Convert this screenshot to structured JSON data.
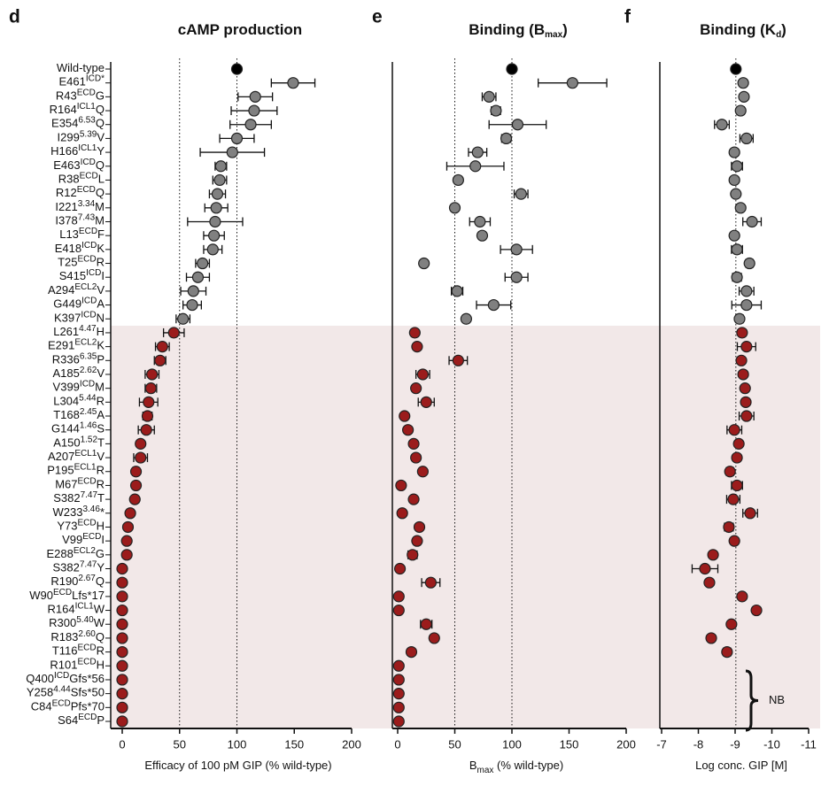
{
  "chart_data": [
    {
      "type": "dot",
      "letter": "d",
      "title": [
        "cAMP production"
      ],
      "xlabel": [
        "Efficacy of 100 pM GIP (% wild-type)"
      ],
      "categories": [
        [
          "Wild-type"
        ],
        [
          "E461",
          "ICD*"
        ],
        [
          "R43",
          "ECD",
          "G"
        ],
        [
          "R164",
          "ICL1",
          "Q"
        ],
        [
          "E354",
          "6.53",
          "Q"
        ],
        [
          "I299",
          "5.39",
          "V"
        ],
        [
          "H166",
          "ICL1",
          "Y"
        ],
        [
          "E463",
          "ICD",
          "Q"
        ],
        [
          "R38",
          "ECD",
          "L"
        ],
        [
          "R12",
          "ECD",
          "Q"
        ],
        [
          "I221",
          "3.34",
          "M"
        ],
        [
          "I378",
          "7.43",
          "M"
        ],
        [
          "L13",
          "ECD",
          "F"
        ],
        [
          "E418",
          "ICD",
          "K"
        ],
        [
          "T25",
          "ECD",
          "R"
        ],
        [
          "S415",
          "ICD",
          "I"
        ],
        [
          "A294",
          "ECL2",
          "V"
        ],
        [
          "G449",
          "ICD",
          "A"
        ],
        [
          "K397",
          "ICD",
          "N"
        ],
        [
          "L261",
          "4.47",
          "H"
        ],
        [
          "E291",
          "ECL2",
          "K"
        ],
        [
          "R336",
          "6.35",
          "P"
        ],
        [
          "A185",
          "2.62",
          "V"
        ],
        [
          "V399",
          "ICD",
          "M"
        ],
        [
          "L304",
          "5.44",
          "R"
        ],
        [
          "T168",
          "2.45",
          "A"
        ],
        [
          "G144",
          "1.46",
          "S"
        ],
        [
          "A150",
          "1.52",
          "T"
        ],
        [
          "A207",
          "ECL1",
          "V"
        ],
        [
          "P195",
          "ECL1",
          "R"
        ],
        [
          "M67",
          "ECD",
          "R"
        ],
        [
          "S382",
          "7.47",
          "T"
        ],
        [
          "W233",
          "3.46",
          "*"
        ],
        [
          "Y73",
          "ECD",
          "H"
        ],
        [
          "V99",
          "ECD",
          "I"
        ],
        [
          "E288",
          "ECL2",
          "G"
        ],
        [
          "S382",
          "7.47",
          "Y"
        ],
        [
          "R190",
          "2.67",
          "Q"
        ],
        [
          "W90",
          "ECD",
          "Lfs*17"
        ],
        [
          "R164",
          "ICL1",
          "W"
        ],
        [
          "R300",
          "5.40",
          "W"
        ],
        [
          "R183",
          "2.60",
          "Q"
        ],
        [
          "T116",
          "ECD",
          "R"
        ],
        [
          "R101",
          "ECD",
          "H"
        ],
        [
          "Q400",
          "ICD",
          "Gfs*56"
        ],
        [
          "Y258",
          "4.44",
          "Sfs*50"
        ],
        [
          "C84",
          "ECD",
          "Pfs*70"
        ],
        [
          "S64",
          "ECD",
          "P"
        ]
      ],
      "colors": [
        "#000000",
        "#808080",
        "#808080",
        "#808080",
        "#808080",
        "#808080",
        "#808080",
        "#808080",
        "#808080",
        "#808080",
        "#808080",
        "#808080",
        "#808080",
        "#808080",
        "#808080",
        "#808080",
        "#808080",
        "#808080",
        "#808080",
        "#9b1c1c",
        "#9b1c1c",
        "#9b1c1c",
        "#9b1c1c",
        "#9b1c1c",
        "#9b1c1c",
        "#9b1c1c",
        "#9b1c1c",
        "#9b1c1c",
        "#9b1c1c",
        "#9b1c1c",
        "#9b1c1c",
        "#9b1c1c",
        "#9b1c1c",
        "#9b1c1c",
        "#9b1c1c",
        "#9b1c1c",
        "#9b1c1c",
        "#9b1c1c",
        "#9b1c1c",
        "#9b1c1c",
        "#9b1c1c",
        "#9b1c1c",
        "#9b1c1c",
        "#9b1c1c",
        "#9b1c1c",
        "#9b1c1c",
        "#9b1c1c",
        "#9b1c1c"
      ],
      "shade_color": "#f2e8e8",
      "values": [
        100,
        149,
        116,
        115,
        112,
        100,
        96,
        86,
        85,
        83,
        82,
        81,
        80,
        79,
        70,
        66,
        62,
        61,
        53,
        45,
        35,
        33,
        26,
        25,
        23,
        22,
        21,
        16,
        16,
        12,
        12,
        11,
        7,
        5,
        4,
        4,
        0,
        0,
        0,
        0,
        0,
        0,
        0,
        0,
        0,
        0,
        0,
        0
      ],
      "errors": [
        null,
        19,
        15,
        20,
        18,
        15,
        28,
        5,
        6,
        7,
        10,
        24,
        9,
        8,
        6,
        10,
        11,
        8,
        6,
        9,
        6,
        5,
        6,
        5,
        8,
        4,
        7,
        2,
        6,
        3,
        2,
        1,
        3,
        2,
        1,
        null,
        null,
        null,
        null,
        null,
        null,
        null,
        null,
        null,
        null,
        null,
        null,
        null
      ],
      "xlim": [
        -10,
        200
      ],
      "xticks": [
        0,
        50,
        100,
        150,
        200
      ],
      "ref_lines": [
        50,
        100
      ]
    },
    {
      "type": "dot",
      "letter": "e",
      "title": [
        "Binding (B",
        "max",
        ")"
      ],
      "xlabel": [
        "B",
        "max",
        " (% wild-type)"
      ],
      "values": [
        100,
        153,
        80,
        86,
        105,
        95,
        70,
        68,
        53,
        108,
        50,
        72,
        74,
        104,
        23,
        104,
        52,
        84,
        60,
        15,
        17,
        53,
        22,
        16,
        25,
        6,
        9,
        14,
        16,
        22,
        3,
        14,
        4,
        19,
        17,
        13,
        2,
        29,
        1,
        1,
        25,
        32,
        12,
        1,
        1,
        1,
        1,
        1
      ],
      "errors": [
        null,
        30,
        6,
        4,
        25,
        4,
        8,
        25,
        3,
        6,
        null,
        9,
        3,
        14,
        2,
        10,
        5,
        15,
        3,
        null,
        null,
        8,
        6,
        null,
        7,
        null,
        2,
        null,
        null,
        null,
        null,
        null,
        null,
        2,
        3,
        4,
        null,
        8,
        null,
        null,
        5,
        null,
        null,
        null,
        null,
        null,
        null,
        null
      ],
      "xlim": [
        -5,
        200
      ],
      "xticks": [
        0,
        50,
        100,
        150,
        200
      ],
      "ref_lines": [
        50,
        100
      ]
    },
    {
      "type": "dot",
      "letter": "f",
      "title": [
        "Binding (K",
        "d",
        ")"
      ],
      "xlabel": [
        "Log conc. GIP [M]"
      ],
      "values": [
        -9.02,
        -9.22,
        -9.24,
        -9.15,
        -8.64,
        -9.31,
        -8.98,
        -9.05,
        -8.98,
        -9.02,
        -9.15,
        -9.46,
        -8.98,
        -9.05,
        -9.39,
        -9.05,
        -9.31,
        -9.31,
        -9.12,
        -9.19,
        -9.31,
        -9.17,
        -9.22,
        -9.27,
        -9.29,
        -9.31,
        -8.98,
        -9.1,
        -9.05,
        -8.86,
        -9.05,
        -8.95,
        -9.41,
        -8.83,
        -8.98,
        -8.4,
        -8.18,
        -8.3,
        -9.19,
        -9.58,
        -8.9,
        -8.35,
        -8.78,
        null,
        null,
        null,
        null,
        null
      ],
      "errors": [
        null,
        null,
        null,
        0.1,
        0.2,
        0.18,
        null,
        0.15,
        null,
        null,
        null,
        0.25,
        null,
        0.15,
        0.1,
        0.12,
        0.2,
        0.4,
        0.1,
        null,
        0.25,
        null,
        null,
        null,
        null,
        0.2,
        0.2,
        null,
        null,
        0.1,
        0.15,
        0.18,
        0.2,
        0.12,
        null,
        null,
        0.35,
        null,
        null,
        null,
        null,
        null,
        0.1,
        null,
        null,
        null,
        null,
        null
      ],
      "xlim": [
        -7,
        -11
      ],
      "xticks": [
        -7,
        -8,
        -9,
        -10,
        -11
      ],
      "ref_lines": [
        -9.02
      ],
      "annotation": "NB"
    }
  ]
}
